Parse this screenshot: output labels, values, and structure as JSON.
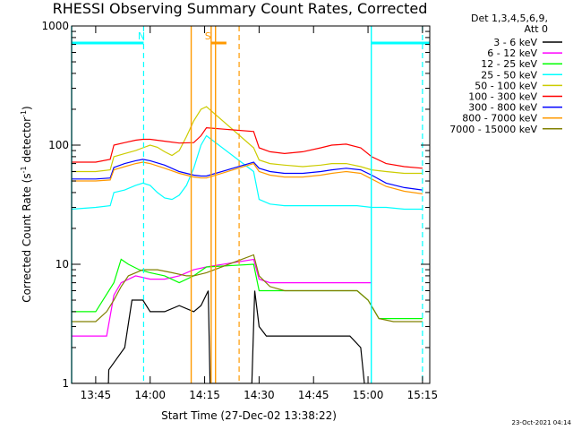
{
  "chart_data": {
    "type": "line",
    "title": "RHESSI Observing Summary Count Rates, Corrected",
    "xlabel": "Start Time (27-Dec-02 13:38:22)",
    "ylabel": "Corrected Count Rate (s^-1 detector^-1)",
    "ylabel_parts": {
      "a": "Corrected Count Rate (s",
      "b": "-1",
      "c": " detector",
      "d": "-1",
      "e": ")"
    },
    "yscale": "log",
    "ylim": [
      1,
      1000
    ],
    "xlim": [
      38.37,
      137
    ],
    "x_unit": "minutes after 13:00",
    "x_ticks": [
      {
        "v": 45,
        "label": "13:45"
      },
      {
        "v": 60,
        "label": "14:00"
      },
      {
        "v": 75,
        "label": "14:15"
      },
      {
        "v": 90,
        "label": "14:30"
      },
      {
        "v": 105,
        "label": "14:45"
      },
      {
        "v": 120,
        "label": "15:00"
      },
      {
        "v": 135,
        "label": "15:15"
      }
    ],
    "y_ticks": [
      {
        "v": 1,
        "label": "1"
      },
      {
        "v": 10,
        "label": "10"
      },
      {
        "v": 100,
        "label": "100"
      },
      {
        "v": 1000,
        "label": "1000"
      }
    ],
    "legend_header": [
      "Det 1,3,4,5,6,9,",
      "Att 0"
    ],
    "legend_position": "right",
    "series": [
      {
        "name": "3 - 6 keV",
        "color": "#000000",
        "x": [
          38.4,
          48.5,
          48.6,
          53,
          55,
          58,
          60,
          64,
          68,
          72,
          74,
          76,
          76.5,
          79,
          85,
          87,
          88,
          88.8,
          90,
          92,
          95,
          100,
          105,
          110,
          115,
          118,
          119
        ],
        "y": [
          1,
          1,
          1.3,
          2,
          5,
          5,
          4,
          4,
          4.5,
          4,
          4.5,
          6,
          1,
          1,
          1,
          1,
          1,
          6,
          3,
          2.5,
          2.5,
          2.5,
          2.5,
          2.5,
          2.5,
          2,
          1
        ]
      },
      {
        "name": "6 - 12 keV",
        "color": "#ff00ff",
        "x": [
          38.4,
          48,
          50,
          52,
          56,
          60,
          64,
          68,
          72,
          75.5,
          88.5,
          90,
          93,
          97,
          102,
          107,
          112,
          117,
          121
        ],
        "y": [
          2.5,
          2.5,
          5.5,
          7,
          8,
          7.5,
          7.5,
          8,
          9,
          9.5,
          11,
          7.5,
          7,
          7,
          7,
          7,
          7,
          7,
          7
        ]
      },
      {
        "name": "12 - 25 keV",
        "color": "#00ff00",
        "x": [
          38.4,
          45,
          50,
          52,
          54,
          57,
          60,
          64,
          68,
          72,
          75.5,
          88.5,
          90,
          93,
          97,
          102,
          107,
          112,
          117,
          120,
          123,
          127,
          131,
          135
        ],
        "y": [
          4,
          4,
          7,
          11,
          10,
          9,
          8.5,
          8,
          7,
          8,
          9.5,
          10,
          6,
          6,
          6,
          6,
          6,
          6,
          6,
          5,
          3.5,
          3.5,
          3.5,
          3.5
        ]
      },
      {
        "name": "25 - 50 keV",
        "color": "#00ffff",
        "x": [
          38.4,
          45,
          49,
          50,
          53,
          56,
          58,
          60,
          62,
          64,
          66,
          68,
          70,
          72,
          74,
          75.5,
          88.5,
          90,
          93,
          97,
          102,
          107,
          112,
          117,
          121,
          125,
          130,
          135
        ],
        "y": [
          29,
          30,
          31,
          40,
          42,
          46,
          48,
          46,
          40,
          36,
          35,
          38,
          46,
          64,
          100,
          120,
          60,
          35,
          32,
          31,
          31,
          31,
          31,
          31,
          30,
          30,
          29,
          29
        ]
      },
      {
        "name": "50 - 100 keV",
        "color": "#cccc00",
        "x": [
          38.4,
          45,
          49,
          50,
          53,
          56,
          58,
          60,
          62,
          64,
          66,
          68,
          70,
          72,
          74,
          75.5,
          88.5,
          90,
          93,
          97,
          102,
          107,
          110,
          114,
          118,
          121,
          125,
          130,
          135
        ],
        "y": [
          60,
          60,
          62,
          80,
          85,
          90,
          95,
          100,
          96,
          88,
          82,
          90,
          118,
          160,
          200,
          210,
          95,
          75,
          70,
          68,
          66,
          68,
          70,
          70,
          66,
          62,
          60,
          58,
          58
        ]
      },
      {
        "name": "100 - 300 keV",
        "color": "#ff0000",
        "x": [
          38.4,
          45,
          49,
          50,
          53,
          56,
          58,
          60,
          64,
          68,
          72,
          74,
          75.5,
          88.5,
          90,
          93,
          97,
          102,
          107,
          110,
          114,
          118,
          121,
          125,
          130,
          135
        ],
        "y": [
          72,
          72,
          76,
          100,
          105,
          110,
          112,
          112,
          108,
          104,
          105,
          120,
          140,
          130,
          95,
          88,
          85,
          88,
          95,
          100,
          102,
          95,
          80,
          70,
          66,
          64
        ]
      },
      {
        "name": "300 - 800 keV",
        "color": "#0000ff",
        "x": [
          38.4,
          45,
          49,
          50,
          53,
          56,
          58,
          60,
          64,
          68,
          72,
          74,
          75.5,
          88.5,
          90,
          93,
          97,
          102,
          107,
          110,
          114,
          118,
          121,
          125,
          130,
          135
        ],
        "y": [
          52,
          52,
          53,
          65,
          70,
          74,
          76,
          74,
          68,
          60,
          56,
          55,
          55,
          72,
          64,
          60,
          58,
          58,
          60,
          62,
          64,
          62,
          56,
          48,
          44,
          42
        ]
      },
      {
        "name": "800 - 7000 keV",
        "color": "#ff9900",
        "x": [
          38.4,
          45,
          49,
          50,
          53,
          56,
          58,
          60,
          64,
          68,
          72,
          74,
          75.5,
          88.5,
          90,
          93,
          97,
          102,
          107,
          110,
          114,
          118,
          121,
          125,
          130,
          135
        ],
        "y": [
          50,
          50,
          51,
          62,
          66,
          70,
          72,
          70,
          64,
          58,
          54,
          53,
          53,
          70,
          60,
          56,
          54,
          54,
          56,
          58,
          60,
          58,
          52,
          45,
          41,
          39
        ]
      },
      {
        "name": "7000 - 15000 keV",
        "color": "#808000",
        "x": [
          38.4,
          45,
          48,
          50,
          52,
          54,
          58,
          62,
          66,
          70,
          72,
          75.5,
          88.5,
          90,
          93,
          97,
          102,
          107,
          112,
          117,
          120,
          123,
          127,
          131,
          135
        ],
        "y": [
          3.3,
          3.3,
          4,
          5,
          6.5,
          8,
          9,
          9,
          8.5,
          8,
          8,
          8.5,
          12,
          8,
          6.5,
          6,
          6,
          6,
          6,
          6,
          5,
          3.5,
          3.3,
          3.3,
          3.3
        ]
      }
    ],
    "annotations": {
      "night_bars": {
        "color": "#00ffff",
        "intervals": [
          [
            38.37,
            58.2
          ],
          [
            120.9,
            137
          ]
        ],
        "flag_label": "N",
        "flag_at": 57.6,
        "dashed_lines": [
          58.2,
          135.0
        ],
        "solid_lines": [
          38.37,
          120.9
        ]
      },
      "saa_bars": {
        "color": "#ff9900",
        "intervals": [
          [
            76.8,
            81.0
          ]
        ],
        "flag_label": "S",
        "flag_at": 75.9,
        "dashed_lines": [
          84.5
        ],
        "solid_lines": [
          71.3,
          76.8,
          78.0
        ]
      }
    }
  },
  "timestamp": "23-Oct-2021 04:14"
}
